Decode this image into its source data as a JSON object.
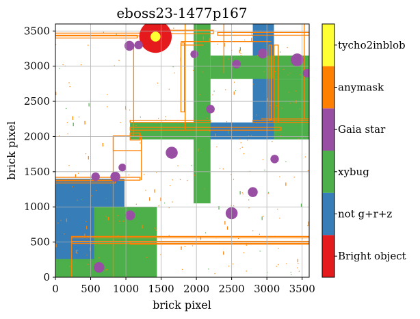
{
  "chart_data": {
    "type": "heatmap",
    "title": "eboss23-1477p167",
    "xlabel": "brick pixel",
    "ylabel": "brick pixel",
    "xlim": [
      0,
      3600
    ],
    "ylim": [
      0,
      3600
    ],
    "xticks": [
      0,
      500,
      1000,
      1500,
      2000,
      2500,
      3000,
      3500
    ],
    "yticks": [
      0,
      500,
      1000,
      1500,
      2000,
      2500,
      3000,
      3500
    ],
    "grid": true,
    "colorbar": [
      {
        "label": "Bright object",
        "color": "#e41a1c"
      },
      {
        "label": "not g+r+z",
        "color": "#377eb8"
      },
      {
        "label": "xybug",
        "color": "#4daf4a"
      },
      {
        "label": "Gaia star",
        "color": "#984ea3"
      },
      {
        "label": "anymask",
        "color": "#ff7f00"
      },
      {
        "label": "tycho2inblob",
        "color": "#ffff33"
      }
    ],
    "regions": [
      {
        "mask": "not g+r+z",
        "x": [
          0,
          980
        ],
        "y": [
          0,
          1400
        ]
      },
      {
        "mask": "not g+r+z",
        "x": [
          1060,
          3600
        ],
        "y": [
          1960,
          2200
        ]
      },
      {
        "mask": "not g+r+z",
        "x": [
          2800,
          3100
        ],
        "y": [
          2200,
          3600
        ]
      },
      {
        "mask": "xybug",
        "x": [
          1960,
          2200
        ],
        "y": [
          1050,
          3600
        ]
      },
      {
        "mask": "xybug",
        "x": [
          2200,
          3600
        ],
        "y": [
          2820,
          3150
        ]
      },
      {
        "mask": "xybug",
        "x": [
          550,
          1440
        ],
        "y": [
          0,
          1000
        ]
      },
      {
        "mask": "xybug",
        "x": [
          0,
          550
        ],
        "y": [
          0,
          260
        ]
      },
      {
        "mask": "xybug",
        "x": [
          1060,
          1960
        ],
        "y": [
          1960,
          2200
        ]
      },
      {
        "mask": "xybug",
        "x": [
          3100,
          3600
        ],
        "y": [
          1960,
          2820
        ]
      }
    ],
    "gaia_stars": [
      {
        "x": 620,
        "y": 140,
        "r": 75
      },
      {
        "x": 570,
        "y": 1430,
        "r": 60
      },
      {
        "x": 850,
        "y": 1430,
        "r": 70
      },
      {
        "x": 950,
        "y": 1560,
        "r": 55
      },
      {
        "x": 1060,
        "y": 880,
        "r": 70
      },
      {
        "x": 1650,
        "y": 1770,
        "r": 85
      },
      {
        "x": 2200,
        "y": 2390,
        "r": 60
      },
      {
        "x": 2500,
        "y": 910,
        "r": 85
      },
      {
        "x": 2800,
        "y": 1210,
        "r": 70
      },
      {
        "x": 3110,
        "y": 1680,
        "r": 60
      },
      {
        "x": 1050,
        "y": 3290,
        "r": 70
      },
      {
        "x": 1180,
        "y": 3300,
        "r": 60
      },
      {
        "x": 1970,
        "y": 3170,
        "r": 55
      },
      {
        "x": 2570,
        "y": 3030,
        "r": 60
      },
      {
        "x": 2940,
        "y": 3180,
        "r": 70
      },
      {
        "x": 3430,
        "y": 3090,
        "r": 90
      },
      {
        "x": 3570,
        "y": 2900,
        "r": 60
      }
    ],
    "bright_objects": [
      {
        "x": 1420,
        "y": 3420,
        "r": 230
      }
    ],
    "tycho2inblob": [
      {
        "x": 1420,
        "y": 3420,
        "r": 70
      }
    ],
    "anymask_boxes": [
      {
        "x": [
          0,
          1260
        ],
        "y": [
          3430,
          3470
        ]
      },
      {
        "x": [
          0,
          1160
        ],
        "y": [
          3400,
          3440
        ]
      },
      {
        "x": [
          1460,
          2240
        ],
        "y": [
          3460,
          3510
        ]
      },
      {
        "x": [
          2300,
          3600
        ],
        "y": [
          3440,
          3480
        ]
      },
      {
        "x": [
          1060,
          3200
        ],
        "y": [
          2090,
          2130
        ]
      },
      {
        "x": [
          2800,
          3600
        ],
        "y": [
          2200,
          2230
        ]
      },
      {
        "x": [
          820,
          1220
        ],
        "y": [
          1800,
          2010
        ]
      },
      {
        "x": [
          1060,
          2200
        ],
        "y": [
          2200,
          2230
        ]
      },
      {
        "x": [
          0,
          1200
        ],
        "y": [
          1380,
          1420
        ]
      },
      {
        "x": [
          0,
          850
        ],
        "y": [
          1340,
          1370
        ]
      },
      {
        "x": [
          230,
          3600
        ],
        "y": [
          560,
          580
        ]
      },
      {
        "x": [
          230,
          3600
        ],
        "y": [
          480,
          510
        ]
      },
      {
        "x": [
          1060,
          3600
        ],
        "y": [
          470,
          500
        ]
      },
      {
        "x": [
          1060,
          1200
        ],
        "y": [
          1950,
          2050
        ]
      },
      {
        "x": [
          1780,
          1830
        ],
        "y": [
          2350,
          3330
        ]
      },
      {
        "x": [
          3100,
          3160
        ],
        "y": [
          2200,
          3300
        ]
      },
      {
        "x": [
          3030,
          3070
        ],
        "y": [
          2240,
          3300
        ]
      }
    ],
    "anymask_lines": [
      {
        "axis": "v",
        "at": 230,
        "range": [
          0,
          580
        ]
      },
      {
        "axis": "v",
        "at": 820,
        "range": [
          0,
          2010
        ]
      },
      {
        "axis": "v",
        "at": 1220,
        "range": [
          1380,
          2010
        ]
      },
      {
        "axis": "v",
        "at": 1110,
        "range": [
          2010,
          3300
        ]
      },
      {
        "axis": "v",
        "at": 1840,
        "range": [
          2100,
          3600
        ]
      },
      {
        "axis": "v",
        "at": 2390,
        "range": [
          2900,
          3600
        ]
      },
      {
        "axis": "v",
        "at": 3060,
        "range": [
          2250,
          3300
        ]
      },
      {
        "axis": "v",
        "at": 3530,
        "range": [
          2250,
          3600
        ]
      },
      {
        "axis": "h",
        "at": 3350,
        "range": [
          1780,
          3060
        ]
      },
      {
        "axis": "h",
        "at": 2250,
        "range": [
          2920,
          3600
        ]
      },
      {
        "axis": "h",
        "at": 3300,
        "range": [
          1780,
          2100
        ]
      }
    ]
  }
}
